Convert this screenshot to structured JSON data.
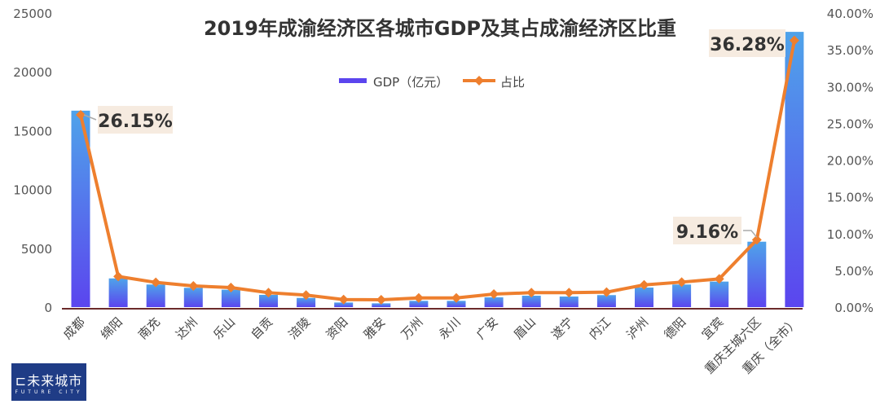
{
  "chart_data": {
    "type": "bar+line",
    "title": "2019年成渝经济区各城市GDP及其占成渝经济区比重",
    "categories": [
      "成都",
      "绵阳",
      "南充",
      "达州",
      "乐山",
      "自贡",
      "涪陵",
      "资阳",
      "雅安",
      "万州",
      "永川",
      "广安",
      "眉山",
      "遂宁",
      "内江",
      "泸州",
      "德阳",
      "宜宾",
      "重庆主城六区",
      "重庆（全市）"
    ],
    "series": [
      {
        "name": "GDP（亿元）",
        "type": "bar",
        "axis": "left",
        "values": [
          16700,
          2440,
          1920,
          1640,
          1480,
          1040,
          780,
          390,
          320,
          530,
          530,
          830,
          970,
          900,
          1020,
          1660,
          1920,
          2170,
          5560,
          23400
        ]
      },
      {
        "name": "占比",
        "type": "line",
        "axis": "right",
        "values": [
          26.15,
          4.17,
          3.36,
          2.88,
          2.66,
          1.96,
          1.63,
          1.03,
          1.0,
          1.25,
          1.25,
          1.77,
          1.96,
          1.96,
          2.03,
          3.02,
          3.4,
          3.84,
          9.16,
          36.28
        ]
      }
    ],
    "data_labels": [
      {
        "category_index": 0,
        "text": "26.15%"
      },
      {
        "category_index": 18,
        "text": "9.16%"
      },
      {
        "category_index": 19,
        "text": "36.28%"
      }
    ],
    "ylim_left": [
      0,
      25000
    ],
    "yticks_left": [
      "0",
      "5000",
      "10000",
      "15000",
      "20000",
      "25000"
    ],
    "ylim_right": [
      0,
      40
    ],
    "yticks_right": [
      "0.00%",
      "5.00%",
      "10.00%",
      "15.00%",
      "20.00%",
      "25.00%",
      "30.00%",
      "35.00%",
      "40.00%"
    ],
    "grid": false,
    "legend_position": "top-center",
    "colors": {
      "bar_top": "#4fa3ea",
      "bar_bottom": "#5b45ee",
      "line": "#ee7f2e",
      "axis": "#6b2b2b",
      "label_bg": "#f6ebe0"
    }
  },
  "logo": {
    "text": "未来城市",
    "subtext": "FUTURE CITY"
  }
}
